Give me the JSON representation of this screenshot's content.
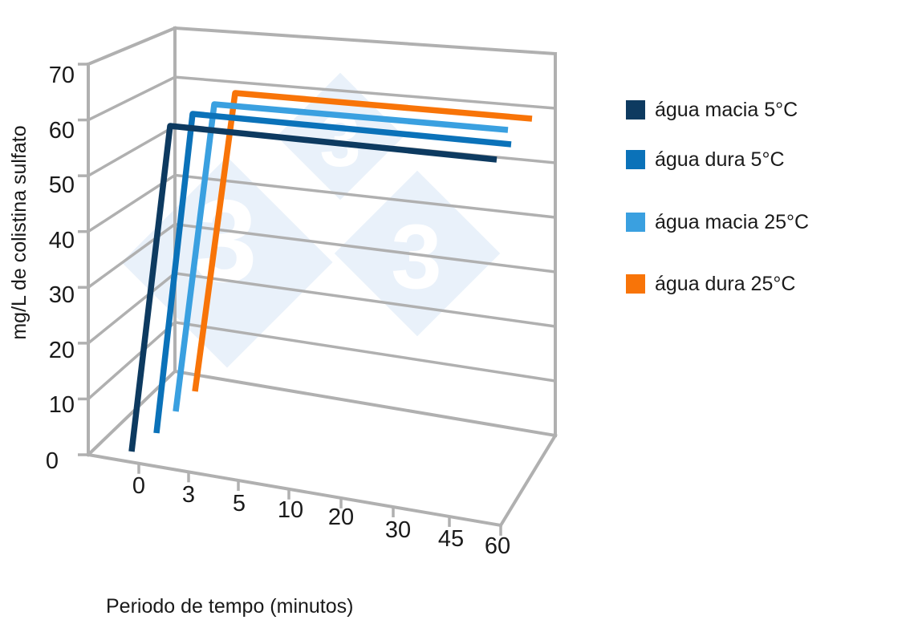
{
  "chart_data": {
    "type": "line",
    "projection": "3d",
    "title": "",
    "xlabel": "Periodo de tempo (minutos)",
    "ylabel": "mg/L de colistina sulfato",
    "x_categories": [
      "0",
      "3",
      "5",
      "10",
      "20",
      "30",
      "45",
      "60"
    ],
    "y_tick_labels_desc": [
      "70",
      "60",
      "50",
      "40",
      "30",
      "20",
      "10",
      "0"
    ],
    "ylim": [
      0,
      70
    ],
    "grid": true,
    "legend_position": "right",
    "series": [
      {
        "name": "água macia 5°C",
        "color": "#0d3a60",
        "values": [
          2,
          60,
          60,
          60,
          60,
          60,
          60,
          60
        ]
      },
      {
        "name": "água dura 5°C",
        "color": "#0b72b9",
        "values": [
          2,
          60,
          60,
          60,
          60,
          60,
          60,
          60
        ]
      },
      {
        "name": "água macia 25°C",
        "color": "#3aa0e0",
        "values": [
          2,
          60,
          60,
          60,
          60,
          60,
          60,
          60
        ]
      },
      {
        "name": "água dura 25°C",
        "color": "#f87408",
        "values": [
          2,
          60,
          60,
          60,
          60,
          60,
          60,
          60
        ]
      }
    ]
  },
  "watermark": {
    "glyph": "3",
    "diamond_color": "#e9f1fa",
    "glyph_color": "#ffffff"
  },
  "axes": {
    "grid_color": "#b0b0b0",
    "text_color": "#1a1a1a"
  }
}
